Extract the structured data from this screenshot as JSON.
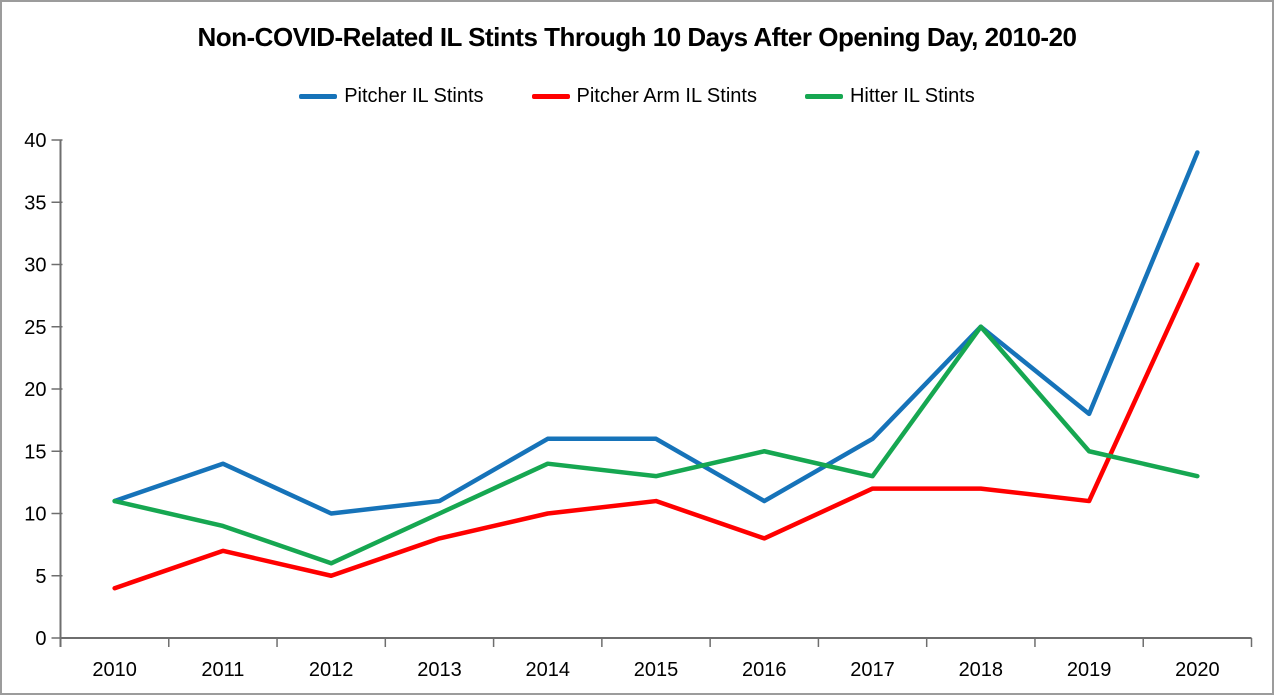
{
  "page": {
    "border_color": "#9c9c9c",
    "background_color": "#ffffff"
  },
  "chart_data": {
    "type": "line",
    "title": "Non-COVID-Related IL Stints Through 10 Days After Opening Day, 2010-20",
    "categories": [
      "2010",
      "2011",
      "2012",
      "2013",
      "2014",
      "2015",
      "2016",
      "2017",
      "2018",
      "2019",
      "2020"
    ],
    "series": [
      {
        "name": "Pitcher IL Stints",
        "color": "#1673B9",
        "values": [
          11,
          14,
          10,
          11,
          16,
          16,
          11,
          16,
          25,
          18,
          39
        ]
      },
      {
        "name": "Pitcher Arm IL Stints",
        "color": "#FF0000",
        "values": [
          4,
          7,
          5,
          8,
          10,
          11,
          8,
          12,
          12,
          11,
          30
        ]
      },
      {
        "name": "Hitter IL Stints",
        "color": "#16A751",
        "values": [
          11,
          9,
          6,
          10,
          14,
          13,
          15,
          13,
          25,
          15,
          13
        ]
      }
    ],
    "xlabel": "",
    "ylabel": "",
    "ylim": [
      0,
      40
    ],
    "yticks": [
      0,
      5,
      10,
      15,
      20,
      25,
      30,
      35,
      40
    ],
    "legend_position": "top",
    "grid": false,
    "axis_color": "#6e6e6e",
    "text_color": "#000000"
  }
}
